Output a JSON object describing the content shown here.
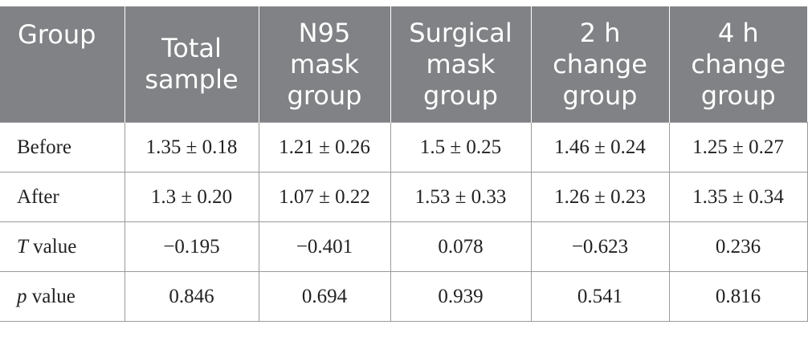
{
  "table": {
    "headers": [
      [
        "Group"
      ],
      [
        "Total",
        "sample"
      ],
      [
        "N95",
        "mask",
        "group"
      ],
      [
        "Surgical",
        "mask",
        "group"
      ],
      [
        "2 h",
        "change",
        "group"
      ],
      [
        "4 h",
        "change",
        "group"
      ]
    ],
    "rows": [
      {
        "label_italic": "",
        "label_rest": "Before",
        "cells": [
          "1.35 ± 0.18",
          "1.21 ± 0.26",
          "1.5 ± 0.25",
          "1.46 ± 0.24",
          "1.25 ± 0.27"
        ]
      },
      {
        "label_italic": "",
        "label_rest": "After",
        "cells": [
          "1.3 ± 0.20",
          "1.07 ± 0.22",
          "1.53 ± 0.33",
          "1.26 ± 0.23",
          "1.35 ± 0.34"
        ]
      },
      {
        "label_italic": "T",
        "label_rest": " value",
        "cells": [
          "−0.195",
          "−0.401",
          "0.078",
          "−0.623",
          "0.236"
        ]
      },
      {
        "label_italic": "p",
        "label_rest": " value",
        "cells": [
          "0.846",
          "0.694",
          "0.939",
          "0.541",
          "0.816"
        ]
      }
    ]
  }
}
